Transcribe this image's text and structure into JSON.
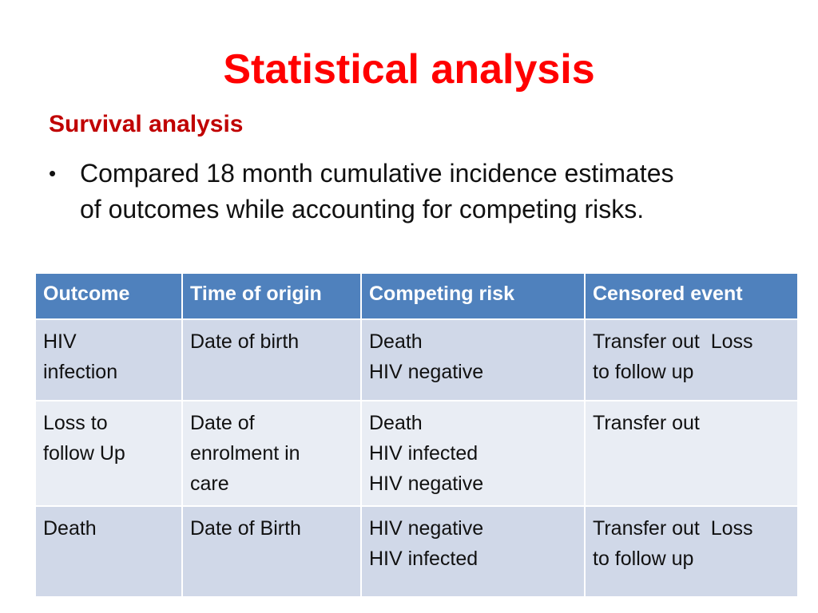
{
  "slide": {
    "title": "Statistical analysis",
    "section_heading": "Survival analysis",
    "bullet": {
      "symbol": "•",
      "lines": [
        "Compared 18 month cumulative incidence estimates",
        "of outcomes while accounting for competing risks."
      ]
    }
  },
  "table": {
    "columns": [
      "Outcome",
      "Time of origin",
      "Competing risk",
      "Censored event"
    ],
    "rows": [
      {
        "outcome": [
          "HIV",
          "infection"
        ],
        "time_of_origin": [
          "Date of birth"
        ],
        "competing_risk": [
          "Death",
          "HIV negative"
        ],
        "censored_event": [
          "Transfer out  Loss",
          "to follow up"
        ]
      },
      {
        "outcome": [
          "Loss to",
          "follow Up"
        ],
        "time_of_origin": [
          "Date of",
          "enrolment in",
          "care"
        ],
        "competing_risk": [
          "Death",
          "HIV infected",
          "HIV negative"
        ],
        "censored_event": [
          "Transfer out"
        ]
      },
      {
        "outcome": [
          "Death"
        ],
        "time_of_origin": [
          "Date of Birth"
        ],
        "competing_risk": [
          "HIV negative",
          "HIV infected"
        ],
        "censored_event": [
          "Transfer out  Loss",
          "to follow up"
        ]
      }
    ]
  },
  "colors": {
    "title": "#ff0000",
    "section_heading": "#c00000",
    "table_header": "#4f81bd",
    "row_dark": "#d0d8e8",
    "row_light": "#e9edf4"
  }
}
